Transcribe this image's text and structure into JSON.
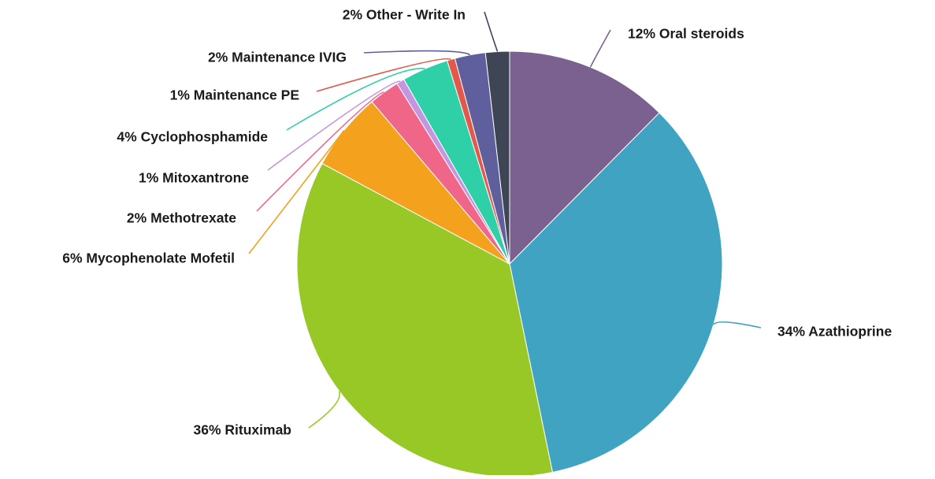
{
  "chart_data": {
    "type": "pie",
    "slices": [
      {
        "label": "12% Oral steroids",
        "value": 12.3,
        "color": "#7a618f"
      },
      {
        "label": "34% Azathioprine",
        "value": 34.0,
        "color": "#3fa3c1"
      },
      {
        "label": "36% Rituximab",
        "value": 35.7,
        "color": "#97c825"
      },
      {
        "label": "6% Mycophenolate Mofetil",
        "value": 5.9,
        "color": "#f4a11e"
      },
      {
        "label": "2% Methotrexate",
        "value": 2.3,
        "color": "#ef6689"
      },
      {
        "label": "1% Mitoxantrone",
        "value": 0.6,
        "color": "#c596e0"
      },
      {
        "label": "4% Cyclophosphamide",
        "value": 3.5,
        "color": "#2fcfa7"
      },
      {
        "label": "1% Maintenance PE",
        "value": 0.6,
        "color": "#e2584a"
      },
      {
        "label": "2% Maintenance IVIG",
        "value": 2.3,
        "color": "#5f5f9d"
      },
      {
        "label": "2% Other - Write In",
        "value": 1.8,
        "color": "#3f4555"
      }
    ]
  }
}
